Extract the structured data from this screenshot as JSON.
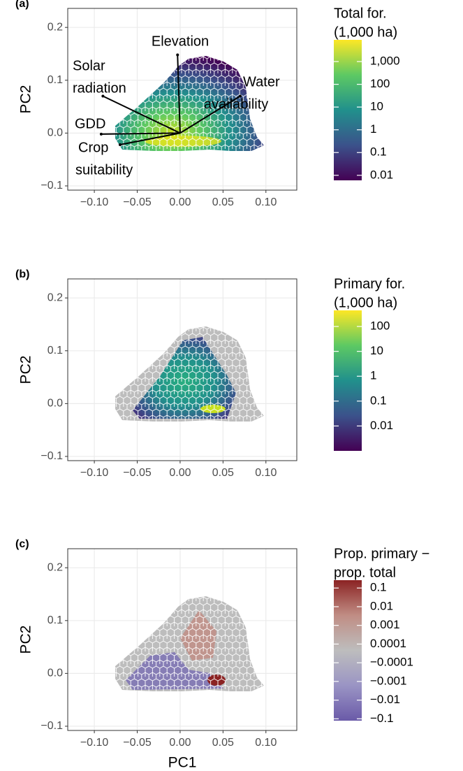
{
  "chart_data": [
    {
      "type": "hexbin",
      "panel_label": "(a)",
      "ylabel": "PC2",
      "xlim": [
        -0.131,
        0.136
      ],
      "ylim": [
        -0.108,
        0.236
      ],
      "xticks": [
        {
          "value": -0.1,
          "label": "−0.10"
        },
        {
          "value": -0.05,
          "label": "−0.05"
        },
        {
          "value": 0,
          "label": "0.00"
        },
        0.05,
        {
          "value": 0.1,
          "label": "0.10"
        }
      ],
      "yticks": [
        {
          "value": -0.1,
          "label": "−0.1"
        },
        {
          "value": 0,
          "label": "0.0"
        },
        0.1,
        0.2
      ],
      "grid": true,
      "legend": {
        "title": [
          "Total for.",
          "(1,000 ha)"
        ],
        "scale": "log",
        "lim": [
          0.006,
          9000
        ],
        "ticks": [
          {
            "value": 1000,
            "label": "1,000"
          },
          100,
          10,
          1,
          0.1,
          0.01
        ],
        "colors": [
          "#440154",
          "#3b528b",
          "#21908c",
          "#5dc963",
          "#fde725"
        ]
      },
      "loadings": [
        {
          "label": [
            "Elevation"
          ],
          "x": -0.003,
          "y": 0.148
        },
        {
          "label": [
            "Solar",
            "radiation"
          ],
          "x": -0.09,
          "y": 0.07
        },
        {
          "label": [
            "Water",
            "availability"
          ],
          "x": 0.07,
          "y": 0.07
        },
        {
          "label": [
            "GDD"
          ],
          "x": -0.092,
          "y": -0.002
        },
        {
          "label": [
            "Crop",
            "suitability"
          ],
          "x": -0.07,
          "y": -0.022
        }
      ]
    },
    {
      "type": "hexbin",
      "panel_label": "(b)",
      "ylabel": "PC2",
      "xlim": [
        -0.131,
        0.136
      ],
      "ylim": [
        -0.108,
        0.236
      ],
      "xticks": [
        {
          "value": -0.1,
          "label": "−0.10"
        },
        {
          "value": -0.05,
          "label": "−0.05"
        },
        {
          "value": 0,
          "label": "0.00"
        },
        0.05,
        {
          "value": 0.1,
          "label": "0.10"
        }
      ],
      "yticks": [
        {
          "value": -0.1,
          "label": "−0.1"
        },
        {
          "value": 0,
          "label": "0.0"
        },
        0.1,
        0.2
      ],
      "grid": true,
      "legend": {
        "title": [
          "Primary for.",
          "(1,000 ha)"
        ],
        "scale": "log",
        "lim": [
          0.001,
          445
        ],
        "ticks": [
          100,
          10,
          1,
          0.1,
          0.01
        ],
        "colors": [
          "#440154",
          "#3b528b",
          "#21908c",
          "#5dc963",
          "#fde725"
        ]
      }
    },
    {
      "type": "hexbin",
      "panel_label": "(c)",
      "ylabel": "PC2",
      "xlabel": "PC1",
      "xlim": [
        -0.131,
        0.136
      ],
      "ylim": [
        -0.108,
        0.236
      ],
      "xticks": [
        {
          "value": -0.1,
          "label": "−0.10"
        },
        {
          "value": -0.05,
          "label": "−0.05"
        },
        {
          "value": 0,
          "label": "0.00"
        },
        0.05,
        {
          "value": 0.1,
          "label": "0.10"
        }
      ],
      "yticks": [
        {
          "value": -0.1,
          "label": "−0.1"
        },
        {
          "value": 0,
          "label": "0.0"
        },
        0.1,
        0.2
      ],
      "grid": true,
      "legend": {
        "title": [
          "Prop. primary −",
          " prop. total"
        ],
        "scale": "symlog",
        "lim": [
          -3.6,
          3.92
        ],
        "ticks": [
          0.1,
          0.01,
          0.001,
          0.0001,
          {
            "value": -0.0001,
            "label": "−0.0001"
          },
          {
            "value": -0.001,
            "label": "−0.001"
          },
          {
            "value": -0.01,
            "label": "−0.01"
          },
          {
            "value": -0.1,
            "label": "−0.1"
          }
        ],
        "colors": [
          "#6a5aa8",
          "#9a94c4",
          "#bdbdbd",
          "#c08d84",
          "#8b2323"
        ]
      }
    }
  ]
}
